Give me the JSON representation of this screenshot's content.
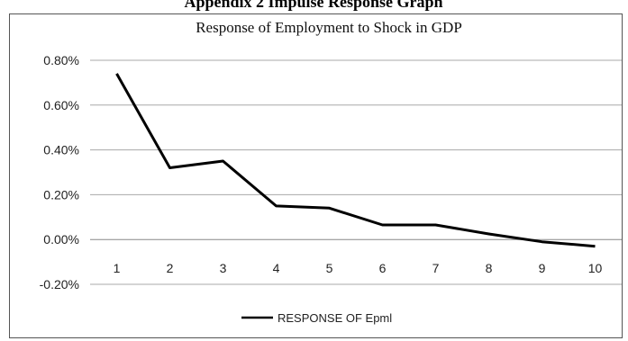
{
  "page": {
    "caption_top": "Appendix 2 Impulse Response Graph"
  },
  "chart_data": {
    "type": "line",
    "title": "Response of Employment to Shock in GDP",
    "xlabel": "",
    "ylabel": "",
    "categories": [
      "1",
      "2",
      "3",
      "4",
      "5",
      "6",
      "7",
      "8",
      "9",
      "10"
    ],
    "ylim": [
      -0.2,
      0.8
    ],
    "y_ticks": [
      "0.80%",
      "0.60%",
      "0.40%",
      "0.20%",
      "0.00%",
      "-0.20%"
    ],
    "y_tick_values": [
      0.8,
      0.6,
      0.4,
      0.2,
      0.0,
      -0.2
    ],
    "y_unit": "%",
    "grid": true,
    "legend_position": "bottom",
    "series": [
      {
        "name": "RESPONSE OF Epml",
        "color": "#000000",
        "values": [
          0.74,
          0.32,
          0.35,
          0.15,
          0.14,
          0.065,
          0.065,
          0.025,
          -0.01,
          -0.03
        ]
      }
    ]
  }
}
